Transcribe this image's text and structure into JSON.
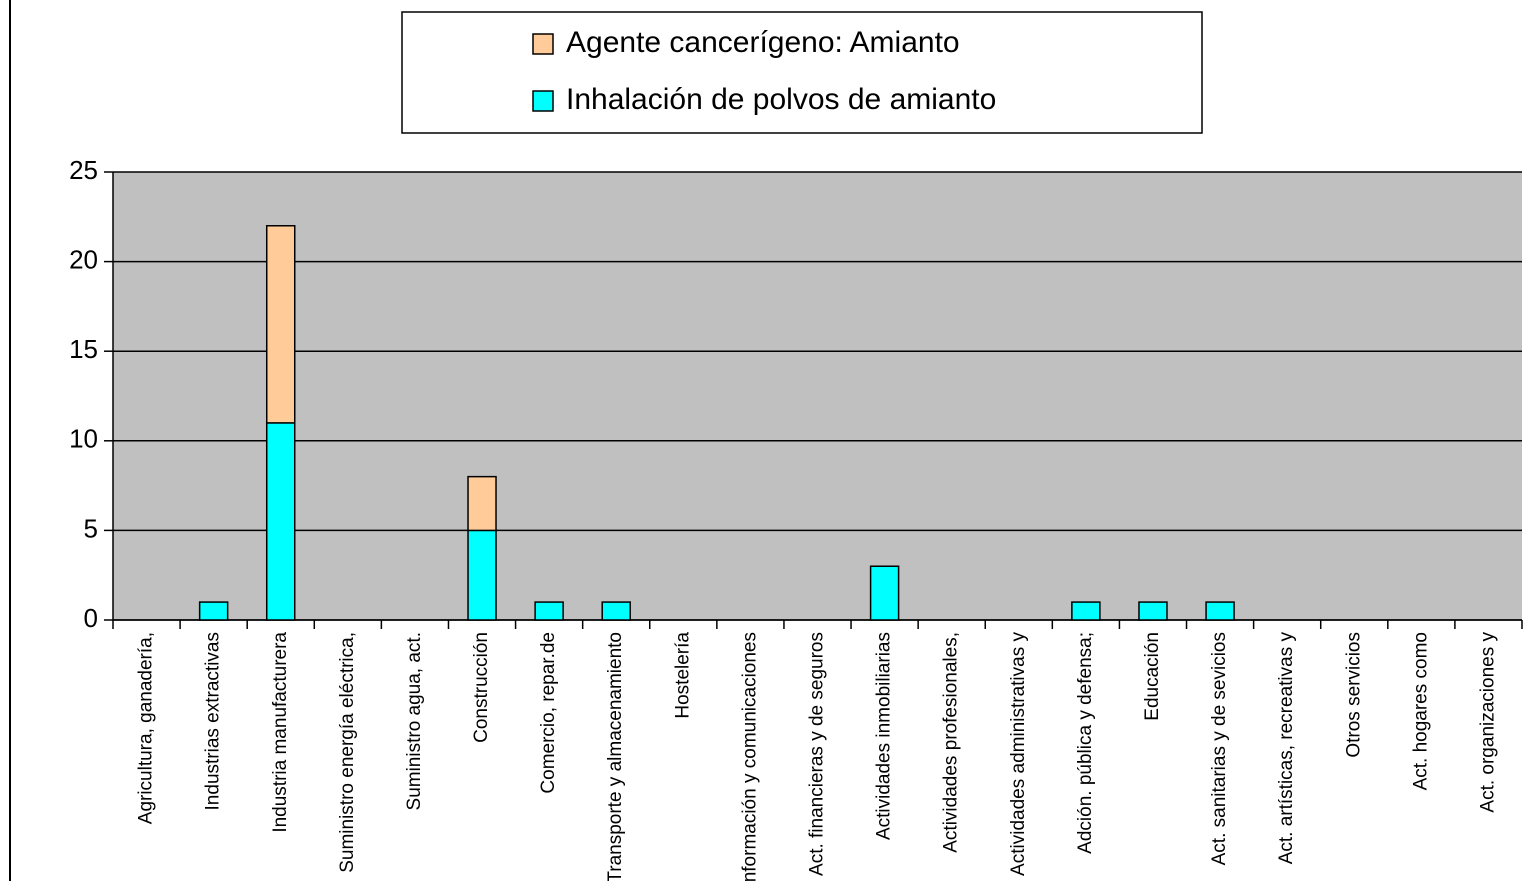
{
  "chart_data": {
    "type": "bar",
    "stacked": true,
    "categories": [
      "Agricultura, ganadería,",
      "Industrias extractivas",
      "Industria manufacturera",
      "Suministro energía eléctrica,",
      "Suministro agua, act.",
      "Construcción",
      "Comercio, repar.de",
      "Transporte y almacenamiento",
      "Hostelería",
      "Información y comunicaciones",
      "Act. financieras y de seguros",
      "Actividades inmobiliarias",
      "Actividades profesionales,",
      "Actividades administrativas y",
      "Adción. pública y defensa;",
      "Educación",
      "Act. sanitarias y de sevicios",
      "Act. artísticas, recreativas y",
      "Otros servicios",
      "Act. hogares como",
      "Act. organizaciones y"
    ],
    "series": [
      {
        "name": "Inhalación de polvos de amianto",
        "color": "#00ffff",
        "values": [
          0,
          1,
          11,
          0,
          0,
          5,
          1,
          1,
          0,
          0,
          0,
          3,
          0,
          0,
          1,
          1,
          1,
          0,
          0,
          0,
          0
        ]
      },
      {
        "name": "Agente cancerígeno: Amianto",
        "color": "#ffcc99",
        "values": [
          0,
          0,
          11,
          0,
          0,
          3,
          0,
          0,
          0,
          0,
          0,
          0,
          0,
          0,
          0,
          0,
          0,
          0,
          0,
          0,
          0
        ]
      }
    ],
    "ylim": [
      0,
      25
    ],
    "yticks": [
      0,
      5,
      10,
      15,
      20,
      25
    ],
    "grid": true,
    "legend": "top"
  }
}
